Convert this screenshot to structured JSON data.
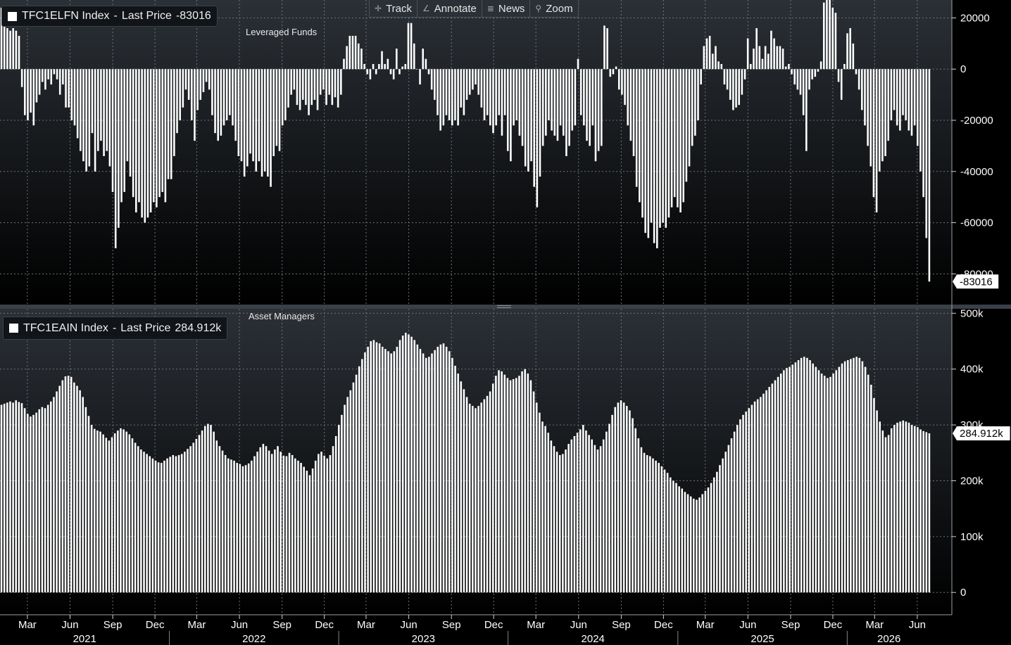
{
  "toolbar": {
    "track": "Track",
    "annotate": "Annotate",
    "news": "News",
    "zoom": "Zoom"
  },
  "colors": {
    "bars": "#ffffff",
    "grid": "#6b737c",
    "background_top": "#2b3036",
    "background_bottom": "#000000",
    "axis_text": "#ffffff"
  },
  "x_axis": {
    "months": [
      "Mar",
      "Jun",
      "Sep",
      "Dec",
      "Mar",
      "Jun",
      "Sep",
      "Dec",
      "Mar",
      "Jun",
      "Sep",
      "Dec",
      "Mar",
      "Jun",
      "Sep",
      "Dec",
      "Mar",
      "Jun",
      "Sep",
      "Dec",
      "Mar",
      "Jun"
    ],
    "years": [
      "2021",
      "2022",
      "2023",
      "2024",
      "2025",
      "2026"
    ]
  },
  "chart_data": [
    {
      "type": "bar",
      "title": "Leveraged Funds",
      "legend": {
        "ticker": "TFC1ELFN Index",
        "label": "Last Price",
        "value": "-83016"
      },
      "last_value_label": "-83016",
      "ylim": [
        -92000,
        27000
      ],
      "yticks": [
        20000,
        0,
        -20000,
        -40000,
        -60000,
        -80000
      ],
      "ytick_labels": [
        "20000",
        "0",
        "-20000",
        "-40000",
        "-60000",
        "-80000"
      ],
      "grid": true,
      "x_range": [
        "2021-01-01",
        "2026-06-30"
      ],
      "frequency": "weekly",
      "values": [
        24000,
        22000,
        16000,
        15000,
        16000,
        15000,
        13000,
        -7000,
        -18000,
        -20000,
        -17000,
        -22000,
        -13000,
        -10000,
        -5000,
        -8000,
        -4000,
        -6000,
        -2000,
        -4000,
        -10000,
        -6000,
        -15000,
        -15000,
        -20000,
        -22000,
        -27000,
        -32000,
        -36000,
        -40000,
        -38000,
        -25000,
        -40000,
        -32000,
        -28000,
        -34000,
        -32000,
        -38000,
        -48000,
        -70000,
        -62000,
        -52000,
        -48000,
        -36000,
        -42000,
        -50000,
        -56000,
        -52000,
        -58000,
        -60000,
        -58000,
        -56000,
        -52000,
        -54000,
        -50000,
        -48000,
        -52000,
        -43000,
        -43000,
        -34000,
        -25000,
        -20000,
        -15000,
        -8000,
        -12000,
        -20000,
        -28000,
        -16000,
        -12000,
        -9000,
        -5000,
        -8000,
        -18000,
        -25000,
        -28000,
        -26000,
        -22000,
        -20000,
        -18000,
        -22000,
        -28000,
        -34000,
        -36000,
        -42000,
        -38000,
        -33000,
        -36000,
        -40000,
        -36000,
        -42000,
        -40000,
        -42000,
        -46000,
        -34000,
        -30000,
        -32000,
        -22000,
        -20000,
        -15000,
        -10000,
        -8000,
        -14000,
        -16000,
        -12000,
        -14000,
        -18000,
        -14000,
        -12000,
        -16000,
        -10000,
        -8000,
        -14000,
        -10000,
        -14000,
        -11000,
        -15000,
        -10000,
        4000,
        9000,
        13000,
        13000,
        13000,
        10000,
        8000,
        2000,
        -2000,
        -4000,
        2000,
        -2000,
        2000,
        7000,
        2000,
        4000,
        -2000,
        -4000,
        8000,
        -2000,
        1000,
        2000,
        18000,
        18000,
        10000,
        0,
        -6000,
        8000,
        4000,
        -2000,
        -8000,
        -12000,
        -18000,
        -24000,
        -22000,
        -18000,
        -20000,
        -22000,
        -20000,
        -22000,
        -15000,
        -18000,
        -12000,
        -10000,
        -8000,
        -6000,
        -10000,
        -15000,
        -20000,
        -18000,
        -22000,
        -25000,
        -22000,
        -18000,
        -26000,
        -18000,
        -32000,
        -36000,
        -22000,
        -20000,
        -26000,
        -30000,
        -38000,
        -40000,
        -36000,
        -46000,
        -54000,
        -42000,
        -30000,
        -26000,
        -20000,
        -24000,
        -26000,
        -28000,
        -22000,
        -26000,
        -34000,
        -30000,
        -24000,
        -22000,
        4000,
        -18000,
        -22000,
        -28000,
        -30000,
        -22000,
        -36000,
        -32000,
        -30000,
        17000,
        16000,
        -3000,
        -2000,
        1000,
        -8000,
        -10000,
        -14000,
        -22000,
        -28000,
        -34000,
        -46000,
        -52000,
        -58000,
        -64000,
        -66000,
        -60000,
        -68000,
        -70000,
        -62000,
        -60000,
        -62000,
        -58000,
        -54000,
        -50000,
        -54000,
        -56000,
        -52000,
        -44000,
        -38000,
        -30000,
        -26000,
        -20000,
        -6000,
        9000,
        12000,
        13000,
        6000,
        9000,
        3000,
        2000,
        -6000,
        -8000,
        -12000,
        -16000,
        -15000,
        -14000,
        -10000,
        -4000,
        12000,
        2000,
        8000,
        16000,
        9000,
        4000,
        9000,
        6000,
        15000,
        12000,
        9000,
        9000,
        8000,
        1000,
        2000,
        -2000,
        -6000,
        -8000,
        -10000,
        -18000,
        -32000,
        -8000,
        -4000,
        -3000,
        -1000,
        3000,
        26000,
        28000,
        29000,
        24000,
        22000,
        -5000,
        -12000,
        2000,
        14000,
        16000,
        10000,
        -2000,
        -8000,
        -16000,
        -22000,
        -30000,
        -38000,
        -50000,
        -56000,
        -40000,
        -36000,
        -34000,
        -28000,
        -20000,
        -16000,
        -22000,
        -24000,
        -18000,
        -20000,
        -24000,
        -26000,
        -22000,
        -30000,
        -40000,
        -50000,
        -66000,
        -83016
      ]
    },
    {
      "type": "bar",
      "title": "Asset Managers",
      "legend": {
        "ticker": "TFC1EAIN Index",
        "label": "Last Price",
        "value": "284.912k"
      },
      "last_value_label": "284.912k",
      "ylim": [
        -40000,
        508000
      ],
      "yticks": [
        500000,
        400000,
        300000,
        200000,
        100000,
        0
      ],
      "ytick_labels": [
        "500k",
        "400k",
        "300k",
        "200k",
        "100k",
        "0"
      ],
      "grid": true,
      "x_range": [
        "2021-01-01",
        "2026-06-30"
      ],
      "frequency": "weekly",
      "values": [
        336000,
        338000,
        340000,
        342000,
        340000,
        344000,
        341000,
        339000,
        330000,
        320000,
        315000,
        318000,
        322000,
        328000,
        332000,
        330000,
        336000,
        342000,
        350000,
        360000,
        370000,
        380000,
        387000,
        388000,
        386000,
        376000,
        370000,
        362000,
        350000,
        332000,
        316000,
        300000,
        293000,
        290000,
        288000,
        283000,
        277000,
        272000,
        278000,
        285000,
        290000,
        294000,
        292000,
        288000,
        283000,
        276000,
        268000,
        262000,
        256000,
        252000,
        248000,
        244000,
        240000,
        236000,
        233000,
        232000,
        236000,
        240000,
        243000,
        246000,
        244000,
        246000,
        248000,
        252000,
        257000,
        262000,
        268000,
        275000,
        282000,
        290000,
        298000,
        302000,
        300000,
        288000,
        272000,
        262000,
        254000,
        246000,
        240000,
        238000,
        236000,
        232000,
        230000,
        226000,
        228000,
        231000,
        236000,
        244000,
        252000,
        260000,
        266000,
        262000,
        254000,
        248000,
        256000,
        262000,
        252000,
        245000,
        244000,
        250000,
        246000,
        240000,
        236000,
        232000,
        225000,
        218000,
        210000,
        222000,
        236000,
        248000,
        252000,
        245000,
        240000,
        246000,
        262000,
        280000,
        300000,
        318000,
        336000,
        350000,
        362000,
        376000,
        390000,
        405000,
        418000,
        430000,
        440000,
        450000,
        452000,
        448000,
        446000,
        440000,
        436000,
        432000,
        428000,
        432000,
        440000,
        452000,
        460000,
        465000,
        462000,
        458000,
        452000,
        444000,
        436000,
        428000,
        420000,
        422000,
        428000,
        434000,
        440000,
        444000,
        446000,
        440000,
        432000,
        420000,
        406000,
        392000,
        378000,
        364000,
        350000,
        338000,
        334000,
        330000,
        334000,
        340000,
        346000,
        352000,
        360000,
        374000,
        388000,
        398000,
        396000,
        390000,
        384000,
        380000,
        382000,
        384000,
        388000,
        396000,
        400000,
        392000,
        380000,
        360000,
        340000,
        322000,
        306000,
        298000,
        286000,
        272000,
        262000,
        252000,
        246000,
        248000,
        256000,
        266000,
        274000,
        280000,
        286000,
        292000,
        300000,
        290000,
        282000,
        274000,
        264000,
        256000,
        262000,
        274000,
        288000,
        302000,
        318000,
        332000,
        340000,
        344000,
        340000,
        334000,
        326000,
        312000,
        294000,
        276000,
        260000,
        250000,
        246000,
        244000,
        240000,
        236000,
        232000,
        226000,
        220000,
        214000,
        206000,
        200000,
        196000,
        190000,
        186000,
        180000,
        176000,
        172000,
        168000,
        166000,
        170000,
        176000,
        182000,
        188000,
        196000,
        206000,
        216000,
        228000,
        240000,
        252000,
        264000,
        276000,
        288000,
        300000,
        310000,
        318000,
        324000,
        330000,
        336000,
        342000,
        346000,
        350000,
        356000,
        362000,
        368000,
        374000,
        380000,
        386000,
        392000,
        398000,
        402000,
        404000,
        408000,
        412000,
        416000,
        420000,
        422000,
        420000,
        416000,
        410000,
        404000,
        398000,
        392000,
        388000,
        384000,
        386000,
        392000,
        398000,
        404000,
        410000,
        414000,
        416000,
        418000,
        420000,
        422000,
        420000,
        414000,
        404000,
        390000,
        372000,
        348000,
        326000,
        306000,
        290000,
        278000,
        282000,
        294000,
        300000,
        304000,
        306000,
        308000,
        306000,
        304000,
        300000,
        298000,
        296000,
        292000,
        289000,
        287000,
        284912
      ]
    }
  ]
}
